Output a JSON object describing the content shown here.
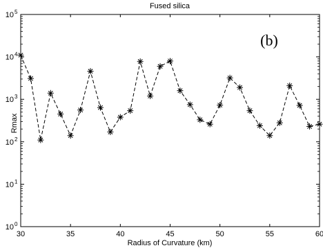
{
  "chart_data": {
    "type": "line",
    "title": "Fused silica",
    "panel_label": "(b)",
    "xlabel": "Radius of Curvature (km)",
    "ylabel": "Rmax",
    "xlim": [
      30,
      60
    ],
    "ylim": [
      1,
      100000
    ],
    "y_scale": "log",
    "grid": false,
    "line_style": "dashed",
    "marker": "asterisk",
    "color": "#000000",
    "x_ticks": [
      30,
      35,
      40,
      45,
      50,
      55,
      60
    ],
    "y_ticks": [
      {
        "value": 1,
        "base": "10",
        "exp": "0"
      },
      {
        "value": 10,
        "base": "10",
        "exp": "1"
      },
      {
        "value": 100,
        "base": "10",
        "exp": "2"
      },
      {
        "value": 1000,
        "base": "10",
        "exp": "3"
      },
      {
        "value": 10000,
        "base": "10",
        "exp": "4"
      },
      {
        "value": 100000,
        "base": "10",
        "exp": "5"
      }
    ],
    "series": [
      {
        "x": [
          30,
          31,
          32,
          33,
          34,
          35,
          36,
          37,
          38,
          39,
          40,
          41,
          42,
          43,
          44,
          45,
          46,
          47,
          48,
          49,
          50,
          51,
          52,
          53,
          54,
          55,
          56,
          57,
          58,
          59,
          60
        ],
        "values": [
          11000,
          3100,
          110,
          1400,
          450,
          140,
          560,
          4600,
          640,
          170,
          380,
          540,
          7800,
          1200,
          6000,
          8000,
          1600,
          750,
          330,
          260,
          730,
          3200,
          1900,
          540,
          240,
          140,
          280,
          2100,
          720,
          230,
          260
        ]
      }
    ]
  }
}
